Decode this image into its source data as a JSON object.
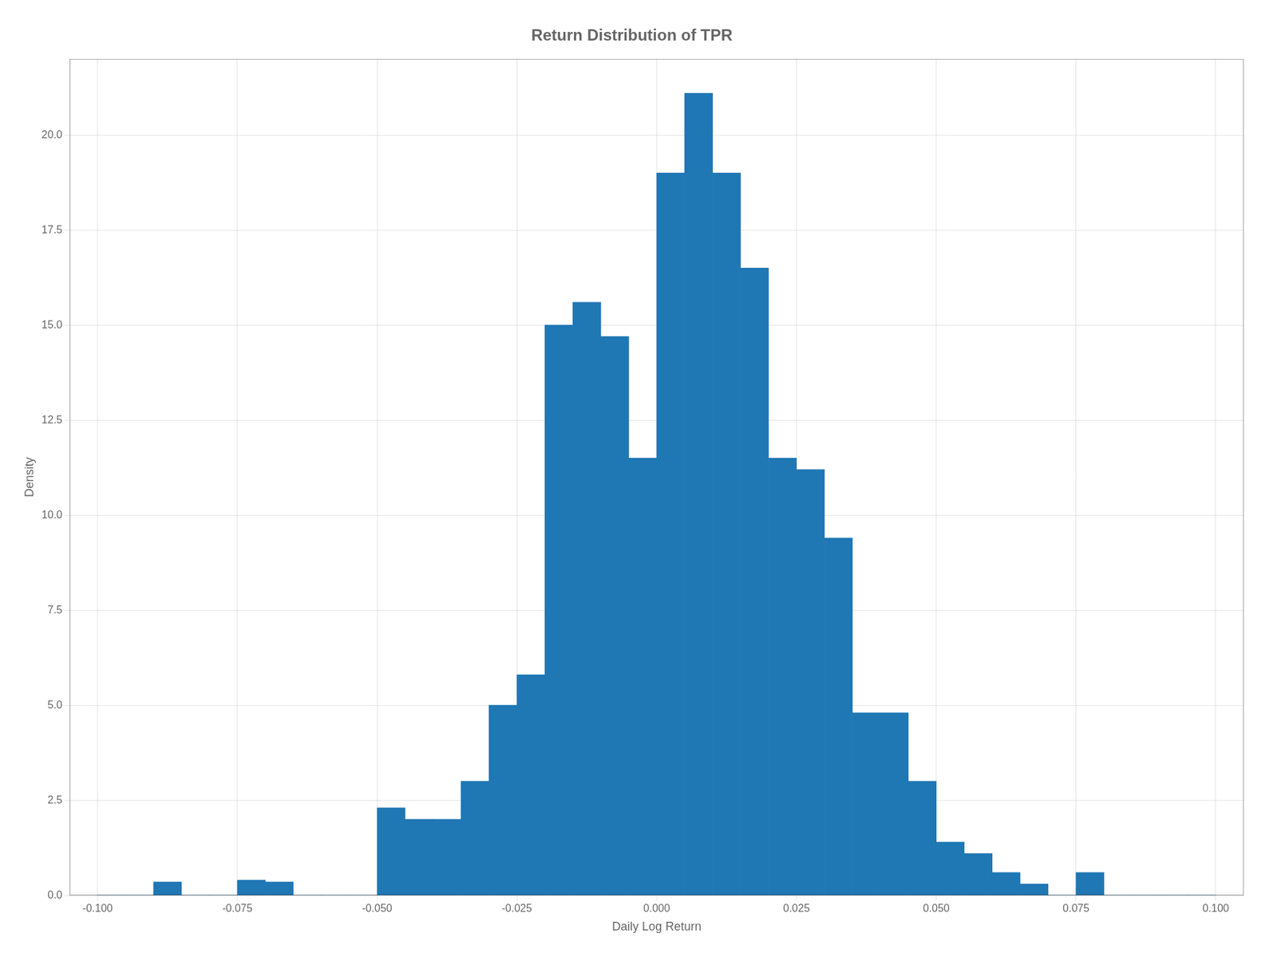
{
  "chart_data": {
    "type": "histogram",
    "title": "Return Distribution of TPR",
    "xlabel": "Daily Log Return",
    "ylabel": "Density",
    "color": "#1f77b4",
    "bins": [
      -0.1,
      -0.095,
      -0.09,
      -0.085,
      -0.08,
      -0.075,
      -0.07,
      -0.065,
      -0.06,
      -0.055,
      -0.05,
      -0.045,
      -0.04,
      -0.035,
      -0.03,
      -0.025,
      -0.02,
      -0.015,
      -0.01,
      -0.005,
      0.0,
      0.005,
      0.01,
      0.015,
      0.02,
      0.025,
      0.03,
      0.035,
      0.04,
      0.045,
      0.05,
      0.055,
      0.06,
      0.065,
      0.07,
      0.075,
      0.08,
      0.085,
      0.09,
      0.095,
      0.1
    ],
    "values": [
      0.0,
      0.0,
      0.35,
      0.0,
      0.0,
      0.4,
      0.35,
      0.0,
      0.0,
      0.0,
      2.3,
      2.0,
      2.0,
      3.0,
      5.0,
      5.8,
      15.0,
      15.6,
      14.7,
      11.5,
      19.0,
      21.1,
      19.0,
      16.5,
      11.5,
      11.2,
      9.4,
      4.8,
      4.8,
      3.0,
      1.4,
      1.1,
      0.6,
      0.3,
      0.0,
      0.6,
      0.0,
      0.0,
      0.0,
      0.0
    ],
    "xlim": [
      -0.105,
      0.105
    ],
    "ylim": [
      0,
      22
    ],
    "xticks": [
      {
        "value": -0.1,
        "label": "-0.100"
      },
      -0.075,
      {
        "value": -0.05,
        "label": "-0.050"
      },
      -0.025,
      {
        "value": 0.0,
        "label": "0.000"
      },
      0.025,
      {
        "value": 0.05,
        "label": "0.050"
      },
      0.075,
      {
        "value": 0.1,
        "label": "0.100"
      }
    ],
    "yticks": [
      {
        "value": 0.0,
        "label": "0.0"
      },
      2.5,
      {
        "value": 5.0,
        "label": "5.0"
      },
      7.5,
      {
        "value": 10.0,
        "label": "10.0"
      },
      12.5,
      {
        "value": 15.0,
        "label": "15.0"
      },
      17.5,
      {
        "value": 20.0,
        "label": "20.0"
      }
    ],
    "grid": true
  }
}
